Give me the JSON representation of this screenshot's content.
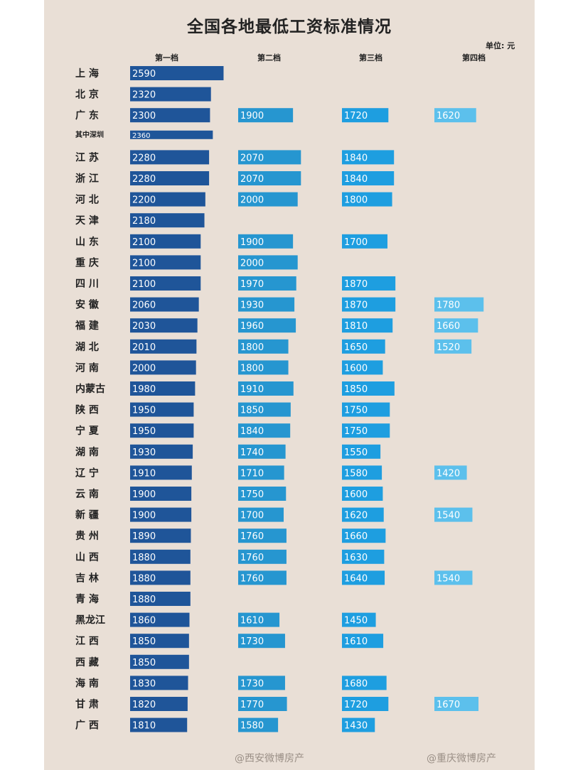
{
  "chart_data": {
    "type": "bar",
    "title": "全国各地最低工资标准情况",
    "unit_label": "单位: 元",
    "columns": [
      "第一档",
      "第二档",
      "第三档",
      "第四档"
    ],
    "categories": [
      "上 海",
      "北 京",
      "广 东",
      "其中深圳",
      "江 苏",
      "浙 江",
      "河 北",
      "天 津",
      "山 东",
      "重 庆",
      "四 川",
      "安 徽",
      "福 建",
      "湖 北",
      "河 南",
      "内蒙古",
      "陕 西",
      "宁 夏",
      "湖 南",
      "辽 宁",
      "云 南",
      "新 疆",
      "贵 州",
      "山 西",
      "吉 林",
      "青 海",
      "黑龙江",
      "江 西",
      "西 藏",
      "海 南",
      "甘 肃",
      "广 西"
    ],
    "series": [
      {
        "name": "第一档",
        "color": "#1f5599",
        "values": [
          2590,
          2320,
          2300,
          2360,
          2280,
          2280,
          2200,
          2180,
          2100,
          2100,
          2100,
          2060,
          2030,
          2010,
          2000,
          1980,
          1950,
          1950,
          1930,
          1910,
          1900,
          1900,
          1890,
          1880,
          1880,
          1880,
          1860,
          1850,
          1850,
          1830,
          1820,
          1810
        ]
      },
      {
        "name": "第二档",
        "color": "#2696d0",
        "values": [
          null,
          null,
          1900,
          null,
          2070,
          2070,
          2000,
          null,
          1900,
          2000,
          1970,
          1930,
          1960,
          1800,
          1800,
          1910,
          1850,
          1840,
          1740,
          1710,
          1750,
          1700,
          1760,
          1760,
          1760,
          null,
          1610,
          1730,
          null,
          1730,
          1770,
          1580
        ]
      },
      {
        "name": "第三档",
        "color": "#1e9ee0",
        "values": [
          null,
          null,
          1720,
          null,
          1840,
          1840,
          1800,
          null,
          1700,
          null,
          1870,
          1870,
          1810,
          1650,
          1600,
          1850,
          1750,
          1750,
          1550,
          1580,
          1600,
          1620,
          1660,
          1630,
          1640,
          null,
          1450,
          1610,
          null,
          1680,
          1720,
          1430
        ]
      },
      {
        "name": "第四档",
        "color": "#5cc0ec",
        "values": [
          null,
          null,
          1620,
          null,
          null,
          null,
          null,
          null,
          null,
          null,
          null,
          1780,
          1660,
          1520,
          null,
          null,
          null,
          null,
          null,
          1420,
          null,
          1540,
          null,
          null,
          1540,
          null,
          null,
          null,
          null,
          null,
          1670,
          null
        ]
      }
    ],
    "watermarks": [
      "@西安微博房产",
      "@重庆微博房产"
    ]
  }
}
